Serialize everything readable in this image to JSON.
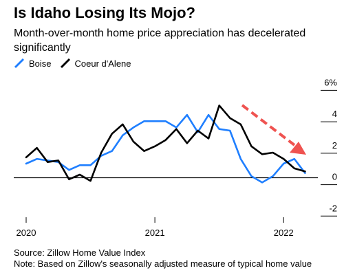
{
  "header": {
    "title": "Is Idaho Losing Its Mojo?",
    "subtitle": "Month-over-month home price appreciation has decelerated significantly"
  },
  "legend": [
    {
      "name": "Boise",
      "color": "#1f7fff"
    },
    {
      "name": "Coeur d'Alene",
      "color": "#000000"
    }
  ],
  "footer": {
    "source": "Source: Zillow Home Value Index",
    "note": "Note: Based on Zillow's seasonally adjusted measure of typical home value"
  },
  "chart_data": {
    "type": "line",
    "title": "Is Idaho Losing Its Mojo?",
    "subtitle": "Month-over-month home price appreciation has decelerated significantly",
    "x": [
      "2020-01",
      "2020-02",
      "2020-03",
      "2020-04",
      "2020-05",
      "2020-06",
      "2020-07",
      "2020-08",
      "2020-09",
      "2020-10",
      "2020-11",
      "2020-12",
      "2021-01",
      "2021-02",
      "2021-03",
      "2021-04",
      "2021-05",
      "2021-06",
      "2021-07",
      "2021-08",
      "2021-09",
      "2021-10",
      "2021-11",
      "2021-12",
      "2022-01",
      "2022-02",
      "2022-03",
      "2022-04"
    ],
    "x_ticks": [
      "2020",
      "2021",
      "2022"
    ],
    "y_ticks": [
      -2,
      0,
      2,
      4,
      6
    ],
    "y_tick_labels": [
      "-2",
      "0",
      "2",
      "4",
      "6%"
    ],
    "ylim": [
      -2.6,
      6.5
    ],
    "series": [
      {
        "name": "Boise",
        "color": "#1f7fff",
        "values": [
          0.9,
          1.2,
          1.1,
          1.0,
          0.5,
          0.8,
          0.8,
          1.4,
          1.7,
          2.7,
          3.2,
          3.6,
          3.6,
          3.6,
          3.2,
          4.0,
          2.9,
          4.0,
          3.1,
          3.0,
          1.2,
          0.1,
          -0.3,
          0.1,
          0.9,
          1.2,
          0.3,
          null
        ]
      },
      {
        "name": "Coeur d'Alene",
        "color": "#000000",
        "values": [
          1.3,
          1.9,
          1.0,
          1.1,
          -0.1,
          0.2,
          -0.2,
          1.6,
          2.8,
          3.4,
          2.3,
          1.7,
          2.0,
          2.4,
          3.1,
          2.2,
          3.0,
          2.5,
          4.6,
          3.8,
          3.4,
          2.0,
          1.5,
          1.6,
          1.2,
          0.6,
          0.4,
          null
        ]
      }
    ],
    "annotation": {
      "type": "arrow",
      "color": "#ef5350",
      "style": "dashed"
    },
    "grid": false,
    "zero_line": true,
    "legend_position": "top-left"
  }
}
